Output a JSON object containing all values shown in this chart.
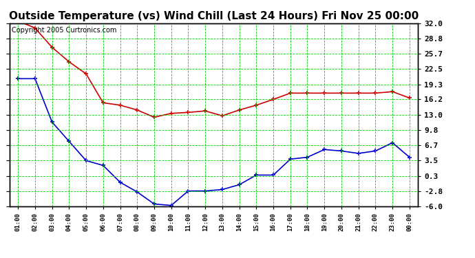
{
  "title": "Outside Temperature (vs) Wind Chill (Last 24 Hours) Fri Nov 25 00:00",
  "copyright": "Copyright 2005 Curtronics.com",
  "x_labels": [
    "01:00",
    "02:00",
    "03:00",
    "04:00",
    "05:00",
    "06:00",
    "07:00",
    "08:00",
    "09:00",
    "10:00",
    "11:00",
    "12:00",
    "13:00",
    "14:00",
    "15:00",
    "16:00",
    "17:00",
    "18:00",
    "19:00",
    "20:00",
    "21:00",
    "22:00",
    "23:00",
    "00:00"
  ],
  "red_data": [
    32.5,
    31.0,
    27.0,
    24.0,
    21.5,
    15.5,
    15.0,
    14.0,
    12.5,
    13.3,
    13.5,
    13.8,
    12.8,
    14.0,
    15.0,
    16.2,
    17.5,
    17.5,
    17.5,
    17.5,
    17.5,
    17.5,
    17.8,
    16.5
  ],
  "blue_data": [
    20.5,
    20.5,
    11.5,
    7.5,
    3.5,
    2.5,
    -1.0,
    -3.0,
    -5.5,
    -5.8,
    -2.8,
    -2.8,
    -2.5,
    -1.5,
    0.5,
    0.5,
    3.8,
    4.2,
    5.8,
    5.5,
    5.0,
    5.5,
    7.2,
    4.2
  ],
  "ylim": [
    -6.0,
    32.0
  ],
  "yticks": [
    -6.0,
    -2.8,
    0.3,
    3.5,
    6.7,
    9.8,
    13.0,
    16.2,
    19.3,
    22.5,
    25.7,
    28.8,
    32.0
  ],
  "background_color": "#ffffff",
  "plot_bg_color": "#ffffff",
  "grid_color": "#00cc00",
  "red_color": "#cc0000",
  "blue_color": "#0000cc",
  "title_fontsize": 11,
  "copyright_fontsize": 7
}
